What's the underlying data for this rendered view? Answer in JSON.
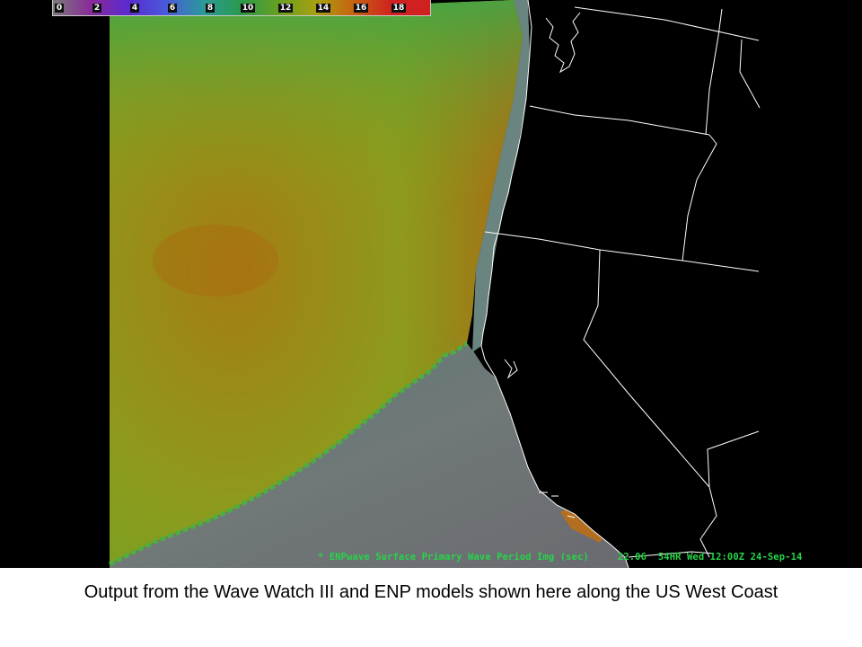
{
  "colorbar": {
    "labels": [
      "0",
      "2",
      "4",
      "6",
      "8",
      "10",
      "12",
      "14",
      "16",
      "18"
    ],
    "colors": [
      "#7a7a7a",
      "#8a2a9a",
      "#5a2ad0",
      "#4a5adb",
      "#2a9a9a",
      "#2a9a4a",
      "#6aa020",
      "#a8a010",
      "#c86010",
      "#d02020"
    ]
  },
  "status_line": "* ENPwave Surface Primary Wave Period Img (sec)     22.06  54HR Wed 12:00Z 24-Sep-14",
  "caption": "Output from the Wave Watch III and ENP models shown here along the US West Coast",
  "colors": {
    "background": "#000000",
    "boundary_lines": "#ffffff",
    "status_text": "#27d34a",
    "long_period_swell": "#8a9a1a",
    "short_period_region": "#6a7a7e"
  }
}
